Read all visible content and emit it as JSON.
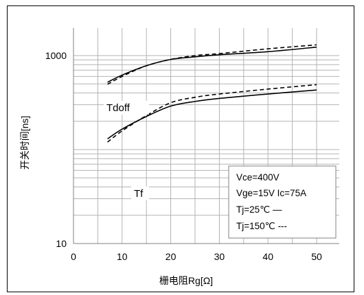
{
  "chart_data": {
    "type": "line",
    "xlabel": "栅电阻Rg[Ω]",
    "ylabel": "开关时间[ns]",
    "xlim": [
      0,
      50
    ],
    "ylim": [
      10,
      10000
    ],
    "y_scale": "log",
    "grid": true,
    "x_ticks": [
      0,
      10,
      20,
      30,
      40,
      50
    ],
    "x_tick_labels": [
      "0",
      "10",
      "20",
      "30",
      "40",
      "50"
    ],
    "y_tick_values": [
      10,
      1000
    ],
    "y_tick_labels": [
      "10",
      "1000"
    ],
    "series_labels": {
      "tdoff": "Tdoff",
      "tf": "Tf"
    },
    "series": [
      {
        "group": "tdoff",
        "style": "solid",
        "x": [
          7,
          10,
          15,
          20,
          25,
          30,
          40,
          50
        ],
        "y": [
          520,
          620,
          780,
          910,
          970,
          1020,
          1100,
          1230
        ]
      },
      {
        "group": "tdoff",
        "style": "dashed",
        "x": [
          7,
          10,
          15,
          20,
          25,
          30,
          40,
          50
        ],
        "y": [
          495,
          600,
          780,
          910,
          1000,
          1050,
          1180,
          1300
        ]
      },
      {
        "group": "tf",
        "style": "solid",
        "x": [
          7,
          10,
          15,
          20,
          25,
          30,
          40,
          50
        ],
        "y": [
          130,
          165,
          225,
          290,
          325,
          350,
          390,
          430
        ]
      },
      {
        "group": "tf",
        "style": "dashed",
        "x": [
          7,
          10,
          15,
          20,
          25,
          30,
          40,
          50
        ],
        "y": [
          120,
          158,
          230,
          315,
          360,
          390,
          440,
          490
        ]
      }
    ],
    "legend": {
      "placement": "bottom-right",
      "lines": [
        "Vce=400V",
        "Vge=15V  Ic=75A",
        "Tj=25℃  —",
        "Tj=150℃  ---"
      ]
    }
  }
}
